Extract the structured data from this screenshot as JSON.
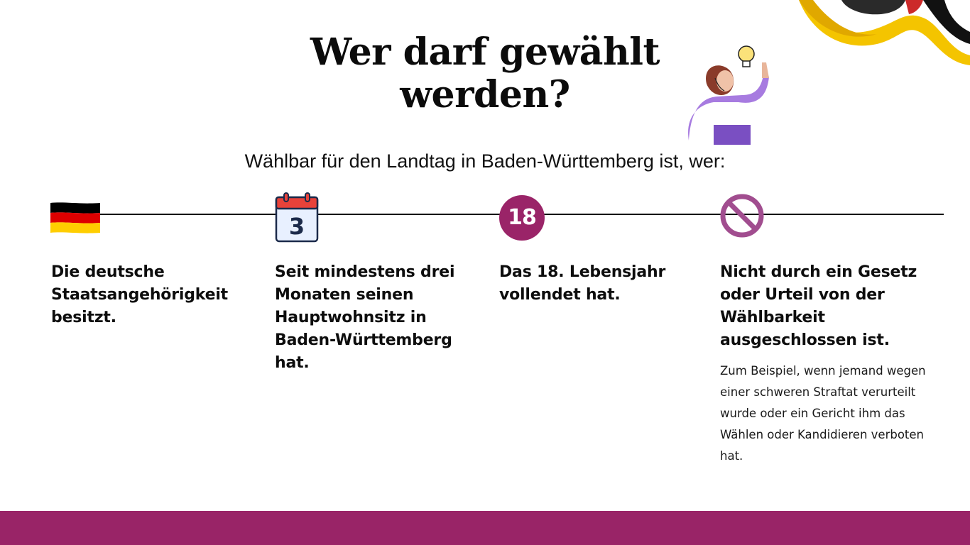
{
  "title": "Wer darf gewählt werden?",
  "subtitle": "Wählbar für den Landtag in Baden-Württemberg ist, wer:",
  "requirements": [
    {
      "icon": "german-flag-icon",
      "text": "Die deutsche Staatsangehörigkeit besitzt."
    },
    {
      "icon": "calendar-icon",
      "icon_text": "3",
      "text": "Seit mindestens drei Monaten seinen Hauptwohnsitz in Baden-Württemberg hat."
    },
    {
      "icon": "age-badge-icon",
      "icon_text": "18",
      "text": "Das 18. Lebensjahr vollendet hat."
    },
    {
      "icon": "forbidden-icon",
      "text": "Nicht durch ein Gesetz oder Urteil von der Wählbarkeit ausgeschlossen ist.",
      "example": "Zum Beispiel, wenn jemand wegen einer schweren Straftat verurteilt wurde oder ein Gericht ihm das Wählen oder Kandidieren verboten hat."
    }
  ],
  "colors": {
    "accent": "#992467",
    "flag_black": "#000000",
    "flag_red": "#dd0000",
    "flag_gold": "#ffce00",
    "ribbon_yellow": "#f4c400"
  },
  "decorations": [
    "woman-thinking-illustration",
    "lightbulb-icon",
    "state-ribbon-decoration"
  ]
}
